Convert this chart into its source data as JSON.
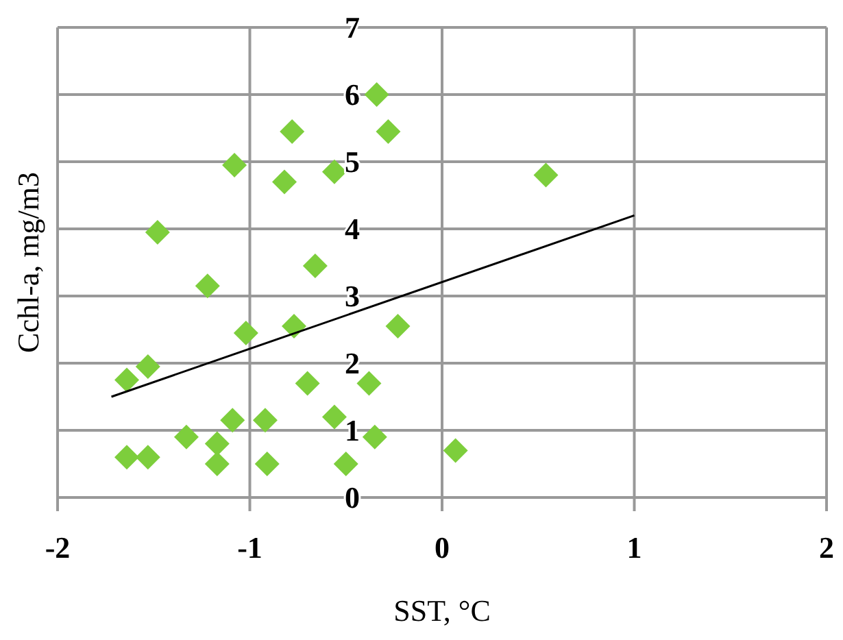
{
  "chart_data": {
    "type": "scatter",
    "xlabel": "SST, °C",
    "ylabel": "Cchl-a, mg/m3",
    "xlim": [
      -2,
      2
    ],
    "xticks": [
      -2,
      -1,
      0,
      1,
      2
    ],
    "ylim": [
      0,
      7
    ],
    "yticks": [
      0,
      1,
      2,
      3,
      4,
      5,
      6,
      7
    ],
    "grid": true,
    "series": [
      {
        "color": "#7dce3c",
        "marker": "diamond",
        "x": [
          -0.34,
          -0.78,
          -0.28,
          -1.08,
          -0.82,
          -0.56,
          0.54,
          -1.48,
          -0.66,
          -1.22,
          -1.02,
          -0.77,
          -0.23,
          -1.64,
          -1.53,
          -0.7,
          -0.38,
          -1.09,
          -0.92,
          -0.56,
          -1.33,
          -1.17,
          -0.35,
          -1.64,
          -1.53,
          -1.17,
          -0.91,
          -0.5,
          0.07
        ],
        "values": [
          6.0,
          5.45,
          5.45,
          4.95,
          4.7,
          4.85,
          4.8,
          3.95,
          3.45,
          3.15,
          2.45,
          2.55,
          2.55,
          1.75,
          1.95,
          1.7,
          1.7,
          1.15,
          1.15,
          1.2,
          0.9,
          0.8,
          0.9,
          0.6,
          0.6,
          0.5,
          0.5,
          0.5,
          0.7
        ]
      },
      {
        "type": "line",
        "color": "#000000",
        "marker": "none",
        "line_style": "solid",
        "x": [
          -1.72,
          1
        ],
        "values": [
          1.5,
          4.2
        ]
      }
    ]
  }
}
